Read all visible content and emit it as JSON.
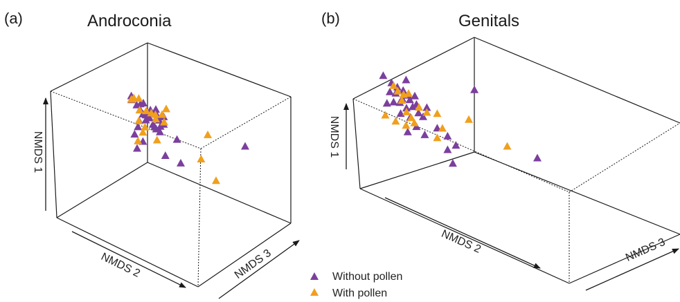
{
  "colors": {
    "without": "#7b3f9e",
    "with": "#f0a01c"
  },
  "legend": [
    {
      "key": "without",
      "label": "Without pollen"
    },
    {
      "key": "with",
      "label": "With pollen"
    }
  ],
  "chart_data": [
    {
      "type": "scatter",
      "panel": "(a)",
      "title": "Androconia",
      "xlabel": "NMDS 2",
      "ylabel": "NMDS 1",
      "zlabel": "NMDS 3",
      "grid": false,
      "series": [
        {
          "key": "without",
          "name": "Without pollen",
          "points": [
            [
              -0.37,
              0.36,
              -0.1
            ],
            [
              -0.28,
              0.31,
              -0.06
            ],
            [
              -0.32,
              0.28,
              -0.07
            ],
            [
              -0.38,
              0.32,
              -0.07
            ],
            [
              -0.23,
              0.33,
              -0.09
            ],
            [
              -0.28,
              0.24,
              -0.07
            ],
            [
              -0.25,
              0.2,
              -0.06
            ],
            [
              -0.21,
              0.2,
              -0.07
            ],
            [
              -0.21,
              0.14,
              -0.07
            ],
            [
              -0.16,
              0.18,
              -0.08
            ],
            [
              -0.17,
              0.24,
              -0.06
            ],
            [
              -0.15,
              0.28,
              -0.08
            ],
            [
              -0.08,
              0.31,
              -0.09
            ],
            [
              0.0,
              0.26,
              -0.06
            ],
            [
              -0.07,
              0.24,
              -0.07
            ],
            [
              -0.13,
              0.12,
              -0.06
            ],
            [
              -0.11,
              0.1,
              -0.06
            ],
            [
              -0.09,
              0.08,
              -0.06
            ],
            [
              -0.04,
              0.06,
              -0.07
            ],
            [
              0.0,
              0.17,
              -0.06
            ],
            [
              -0.06,
              0.2,
              -0.05
            ],
            [
              -0.29,
              0.1,
              -0.07
            ],
            [
              -0.3,
              0.02,
              -0.08
            ],
            [
              -0.35,
              -0.08,
              -0.06
            ],
            [
              -0.25,
              -0.13,
              -0.06
            ],
            [
              -0.32,
              -0.24,
              -0.06
            ],
            [
              0.02,
              -0.2,
              -0.06
            ],
            [
              0.2,
              -0.22,
              -0.05
            ],
            [
              0.15,
              0.05,
              -0.04
            ],
            [
              0.75,
              0.34,
              0.4
            ],
            [
              -0.09,
              0.2,
              -0.07
            ],
            [
              -0.04,
              0.13,
              -0.06
            ]
          ]
        },
        {
          "key": "with",
          "name": "With pollen",
          "points": [
            [
              -0.35,
              0.35,
              -0.08
            ],
            [
              -0.3,
              0.37,
              -0.06
            ],
            [
              -0.37,
              0.32,
              -0.1
            ],
            [
              -0.28,
              0.23,
              -0.08
            ],
            [
              -0.2,
              0.25,
              -0.08
            ],
            [
              -0.15,
              0.25,
              -0.06
            ],
            [
              -0.1,
              0.2,
              -0.05
            ],
            [
              -0.02,
              0.28,
              -0.06
            ],
            [
              0.02,
              0.37,
              -0.04
            ],
            [
              -0.3,
              0.1,
              -0.06
            ],
            [
              -0.25,
              -0.02,
              -0.06
            ],
            [
              -0.22,
              0.05,
              -0.07
            ],
            [
              -0.08,
              -0.05,
              -0.06
            ],
            [
              -0.3,
              -0.15,
              -0.08
            ],
            [
              -0.1,
              0.25,
              -0.06
            ],
            [
              0.0,
              0.2,
              -0.05
            ],
            [
              0.45,
              -0.08,
              -0.06
            ],
            [
              0.55,
              -0.25,
              0.1
            ],
            [
              0.4,
              0.28,
              0.2
            ]
          ]
        }
      ]
    },
    {
      "type": "scatter",
      "panel": "(b)",
      "title": "Genitals",
      "xlabel": "NMDS 2",
      "ylabel": "NMDS 1",
      "zlabel": "NMDS 3",
      "grid": false,
      "series": [
        {
          "key": "without",
          "name": "Without pollen",
          "points": [
            [
              -0.82,
              0.22,
              -0.06
            ],
            [
              -0.74,
              0.18,
              -0.06
            ],
            [
              -0.68,
              0.16,
              -0.07
            ],
            [
              -0.62,
              0.15,
              -0.08
            ],
            [
              -0.7,
              0.09,
              -0.06
            ],
            [
              -0.64,
              0.06,
              -0.05
            ],
            [
              -0.66,
              0.01,
              -0.06
            ],
            [
              -0.72,
              -0.01,
              -0.06
            ],
            [
              -0.6,
              -0.02,
              -0.05
            ],
            [
              -0.56,
              0.08,
              -0.07
            ],
            [
              -0.58,
              0.12,
              -0.06
            ],
            [
              -0.52,
              0.14,
              -0.05
            ],
            [
              -0.5,
              0.06,
              -0.06
            ],
            [
              -0.54,
              0.02,
              -0.05
            ],
            [
              -0.48,
              -0.02,
              -0.06
            ],
            [
              -0.44,
              -0.04,
              -0.05
            ],
            [
              -0.4,
              0.07,
              -0.06
            ],
            [
              -0.78,
              -0.05,
              -0.07
            ],
            [
              -0.76,
              0.08,
              -0.05
            ],
            [
              -0.66,
              -0.1,
              -0.04
            ],
            [
              -0.56,
              -0.1,
              -0.06
            ],
            [
              -0.3,
              -0.1,
              -0.06
            ],
            [
              -0.2,
              -0.14,
              -0.06
            ],
            [
              -0.12,
              -0.2,
              -0.06
            ],
            [
              -0.42,
              -0.22,
              -0.06
            ],
            [
              -0.58,
              -0.26,
              -0.07
            ],
            [
              -0.2,
              -0.28,
              -0.06
            ],
            [
              -0.15,
              -0.4,
              -0.06
            ],
            [
              -0.5,
              -0.17,
              -0.06
            ],
            [
              0.6,
              0.0,
              0.1
            ],
            [
              0.05,
              0.45,
              -0.04
            ],
            [
              -0.6,
              0.27,
              -0.06
            ]
          ]
        },
        {
          "key": "with",
          "name": "With pollen",
          "points": [
            [
              -0.72,
              0.16,
              -0.06
            ],
            [
              -0.68,
              0.12,
              -0.06
            ],
            [
              -0.62,
              0.11,
              -0.07
            ],
            [
              -0.58,
              0.14,
              -0.05
            ],
            [
              -0.64,
              0.04,
              -0.06
            ],
            [
              -0.6,
              -0.06,
              -0.05
            ],
            [
              -0.55,
              -0.1,
              -0.06
            ],
            [
              -0.48,
              0.04,
              -0.05
            ],
            [
              -0.4,
              0.02,
              -0.06
            ],
            [
              -0.3,
              0.05,
              -0.06
            ],
            [
              -0.3,
              -0.2,
              -0.06
            ],
            [
              -0.25,
              -0.08,
              -0.06
            ],
            [
              -0.7,
              -0.2,
              -0.06
            ],
            [
              -0.8,
              -0.18,
              -0.06
            ],
            [
              -0.6,
              -0.2,
              -0.06
            ],
            [
              -0.52,
              -0.14,
              -0.06
            ],
            [
              0.0,
              0.12,
              -0.05
            ],
            [
              0.35,
              0.0,
              0.0
            ]
          ]
        }
      ]
    }
  ]
}
